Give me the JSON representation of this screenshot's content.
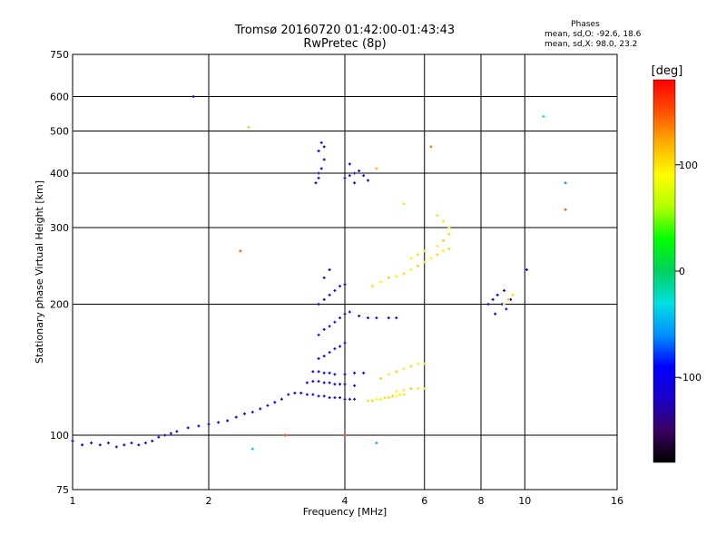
{
  "title": {
    "line1": "Tromsø 20160720 01:42:00-01:43:43",
    "line2": "RwPretec (8p)"
  },
  "stats": {
    "heading": "Phases",
    "o_label": "mean, sd,O:",
    "o_values": "-92.6, 18.6",
    "x_label": "mean, sd,X:",
    "x_values": "98.0, 23.2"
  },
  "colorbar": {
    "title": "[deg]",
    "ticks": [
      {
        "value": 100,
        "label": "100"
      },
      {
        "value": 0,
        "label": "0"
      },
      {
        "value": -100,
        "label": "-100"
      }
    ],
    "range": [
      -180,
      180
    ],
    "stops": [
      "#000000",
      "#3a0060",
      "#1a00c8",
      "#0000ff",
      "#0090ff",
      "#00e0e0",
      "#00d060",
      "#00ff00",
      "#b0ff00",
      "#ffff00",
      "#ffb000",
      "#ff5000",
      "#ff0000"
    ]
  },
  "chart_data": {
    "type": "scatter",
    "xlabel": "Frequency [MHz]",
    "ylabel": "Stationary phase Virtual Height [km]",
    "xscale": "log2",
    "yscale": "log",
    "xlim": [
      1,
      16
    ],
    "ylim": [
      75,
      750
    ],
    "grid": true,
    "xticks": [
      {
        "value": 1,
        "label": "1"
      },
      {
        "value": 2,
        "label": "2"
      },
      {
        "value": 4,
        "label": "4"
      },
      {
        "value": 6,
        "label": "6"
      },
      {
        "value": 8,
        "label": "8"
      },
      {
        "value": 10,
        "label": "10"
      },
      {
        "value": 16,
        "label": "16"
      }
    ],
    "yticks": [
      {
        "value": 75,
        "label": "75"
      },
      {
        "value": 100,
        "label": "100"
      },
      {
        "value": 200,
        "label": "200"
      },
      {
        "value": 300,
        "label": "300"
      },
      {
        "value": 400,
        "label": "400"
      },
      {
        "value": 500,
        "label": "500"
      },
      {
        "value": 600,
        "label": "600"
      },
      {
        "value": 750,
        "label": "750"
      }
    ],
    "series": [
      {
        "name": "O",
        "color_phase_deg": -100,
        "points": [
          [
            1.0,
            97
          ],
          [
            1.05,
            95
          ],
          [
            1.1,
            96
          ],
          [
            1.15,
            95
          ],
          [
            1.2,
            96
          ],
          [
            1.25,
            94
          ],
          [
            1.3,
            95
          ],
          [
            1.35,
            96
          ],
          [
            1.4,
            95
          ],
          [
            1.45,
            96
          ],
          [
            1.5,
            97
          ],
          [
            1.55,
            99
          ],
          [
            1.6,
            100
          ],
          [
            1.65,
            101
          ],
          [
            1.7,
            102
          ],
          [
            1.8,
            104
          ],
          [
            1.9,
            105
          ],
          [
            2.0,
            106
          ],
          [
            2.1,
            107
          ],
          [
            2.2,
            108
          ],
          [
            2.3,
            110
          ],
          [
            2.4,
            112
          ],
          [
            2.5,
            113
          ],
          [
            2.6,
            115
          ],
          [
            2.7,
            117
          ],
          [
            2.8,
            119
          ],
          [
            2.9,
            121
          ],
          [
            3.0,
            124
          ],
          [
            3.1,
            125
          ],
          [
            3.2,
            125
          ],
          [
            3.3,
            124
          ],
          [
            3.4,
            124
          ],
          [
            3.5,
            123
          ],
          [
            3.6,
            123
          ],
          [
            3.7,
            122
          ],
          [
            3.8,
            122
          ],
          [
            3.9,
            122
          ],
          [
            4.0,
            121
          ],
          [
            4.1,
            121
          ],
          [
            4.2,
            121
          ],
          [
            3.3,
            132
          ],
          [
            3.4,
            133
          ],
          [
            3.5,
            133
          ],
          [
            3.6,
            132
          ],
          [
            3.7,
            132
          ],
          [
            3.8,
            131
          ],
          [
            3.9,
            131
          ],
          [
            4.0,
            131
          ],
          [
            4.2,
            130
          ],
          [
            3.4,
            140
          ],
          [
            3.5,
            140
          ],
          [
            3.6,
            139
          ],
          [
            3.7,
            139
          ],
          [
            3.8,
            138
          ],
          [
            4.0,
            138
          ],
          [
            4.2,
            139
          ],
          [
            4.4,
            139
          ],
          [
            3.5,
            150
          ],
          [
            3.6,
            152
          ],
          [
            3.7,
            155
          ],
          [
            3.8,
            158
          ],
          [
            3.9,
            160
          ],
          [
            4.0,
            163
          ],
          [
            3.5,
            170
          ],
          [
            3.6,
            175
          ],
          [
            3.7,
            178
          ],
          [
            3.8,
            182
          ],
          [
            3.9,
            186
          ],
          [
            4.0,
            190
          ],
          [
            4.1,
            192
          ],
          [
            4.3,
            188
          ],
          [
            4.5,
            186
          ],
          [
            4.7,
            186
          ],
          [
            5.0,
            186
          ],
          [
            5.2,
            186
          ],
          [
            3.5,
            200
          ],
          [
            3.6,
            205
          ],
          [
            3.7,
            210
          ],
          [
            3.8,
            215
          ],
          [
            3.9,
            220
          ],
          [
            4.0,
            222
          ],
          [
            3.6,
            230
          ],
          [
            3.7,
            240
          ],
          [
            3.5,
            400
          ],
          [
            3.55,
            410
          ],
          [
            3.6,
            430
          ],
          [
            3.5,
            450
          ],
          [
            3.55,
            470
          ],
          [
            3.6,
            460
          ],
          [
            3.45,
            380
          ],
          [
            3.5,
            390
          ],
          [
            4.0,
            390
          ],
          [
            4.1,
            395
          ],
          [
            4.2,
            400
          ],
          [
            4.3,
            405
          ],
          [
            4.4,
            395
          ],
          [
            4.5,
            385
          ],
          [
            4.1,
            420
          ],
          [
            4.2,
            380
          ],
          [
            8.3,
            200
          ],
          [
            8.5,
            205
          ],
          [
            8.7,
            210
          ],
          [
            8.9,
            200
          ],
          [
            9.1,
            195
          ],
          [
            9.3,
            205
          ],
          [
            9.0,
            215
          ],
          [
            8.6,
            190
          ]
        ]
      },
      {
        "name": "X",
        "color_phase_deg": 100,
        "points": [
          [
            4.5,
            120
          ],
          [
            4.6,
            120
          ],
          [
            4.7,
            121
          ],
          [
            4.8,
            121
          ],
          [
            4.9,
            122
          ],
          [
            5.0,
            122
          ],
          [
            5.1,
            123
          ],
          [
            5.2,
            123
          ],
          [
            5.3,
            124
          ],
          [
            5.4,
            124
          ],
          [
            5.2,
            126
          ],
          [
            5.4,
            127
          ],
          [
            5.6,
            128
          ],
          [
            5.8,
            128
          ],
          [
            6.0,
            128
          ],
          [
            4.8,
            135
          ],
          [
            5.0,
            138
          ],
          [
            5.2,
            140
          ],
          [
            5.4,
            142
          ],
          [
            5.6,
            144
          ],
          [
            5.8,
            146
          ],
          [
            6.0,
            146
          ],
          [
            4.6,
            220
          ],
          [
            4.8,
            225
          ],
          [
            5.0,
            230
          ],
          [
            5.2,
            232
          ],
          [
            5.4,
            235
          ],
          [
            5.6,
            240
          ],
          [
            5.8,
            245
          ],
          [
            6.0,
            250
          ],
          [
            6.2,
            255
          ],
          [
            6.4,
            260
          ],
          [
            6.6,
            265
          ],
          [
            6.8,
            268
          ],
          [
            5.6,
            255
          ],
          [
            5.8,
            260
          ],
          [
            6.0,
            265
          ],
          [
            6.4,
            272
          ],
          [
            6.6,
            280
          ],
          [
            6.8,
            290
          ],
          [
            6.8,
            300
          ],
          [
            6.6,
            310
          ],
          [
            6.4,
            320
          ],
          [
            5.4,
            340
          ],
          [
            9.0,
            200
          ],
          [
            9.2,
            205
          ],
          [
            9.4,
            210
          ]
        ]
      }
    ],
    "outliers": [
      {
        "x": 1.85,
        "y": 600,
        "phase": -100
      },
      {
        "x": 2.45,
        "y": 510,
        "phase": 110
      },
      {
        "x": 2.35,
        "y": 265,
        "phase": 150
      },
      {
        "x": 11.0,
        "y": 540,
        "phase": -30
      },
      {
        "x": 12.3,
        "y": 330,
        "phase": 150
      },
      {
        "x": 12.3,
        "y": 380,
        "phase": -60
      },
      {
        "x": 10.1,
        "y": 240,
        "phase": -100
      },
      {
        "x": 2.5,
        "y": 93,
        "phase": -40
      },
      {
        "x": 2.95,
        "y": 100,
        "phase": 160
      },
      {
        "x": 4.0,
        "y": 100,
        "phase": 170
      },
      {
        "x": 4.7,
        "y": 96,
        "phase": -50
      },
      {
        "x": 6.2,
        "y": 460,
        "phase": 140
      },
      {
        "x": 4.7,
        "y": 410,
        "phase": 120
      }
    ]
  }
}
